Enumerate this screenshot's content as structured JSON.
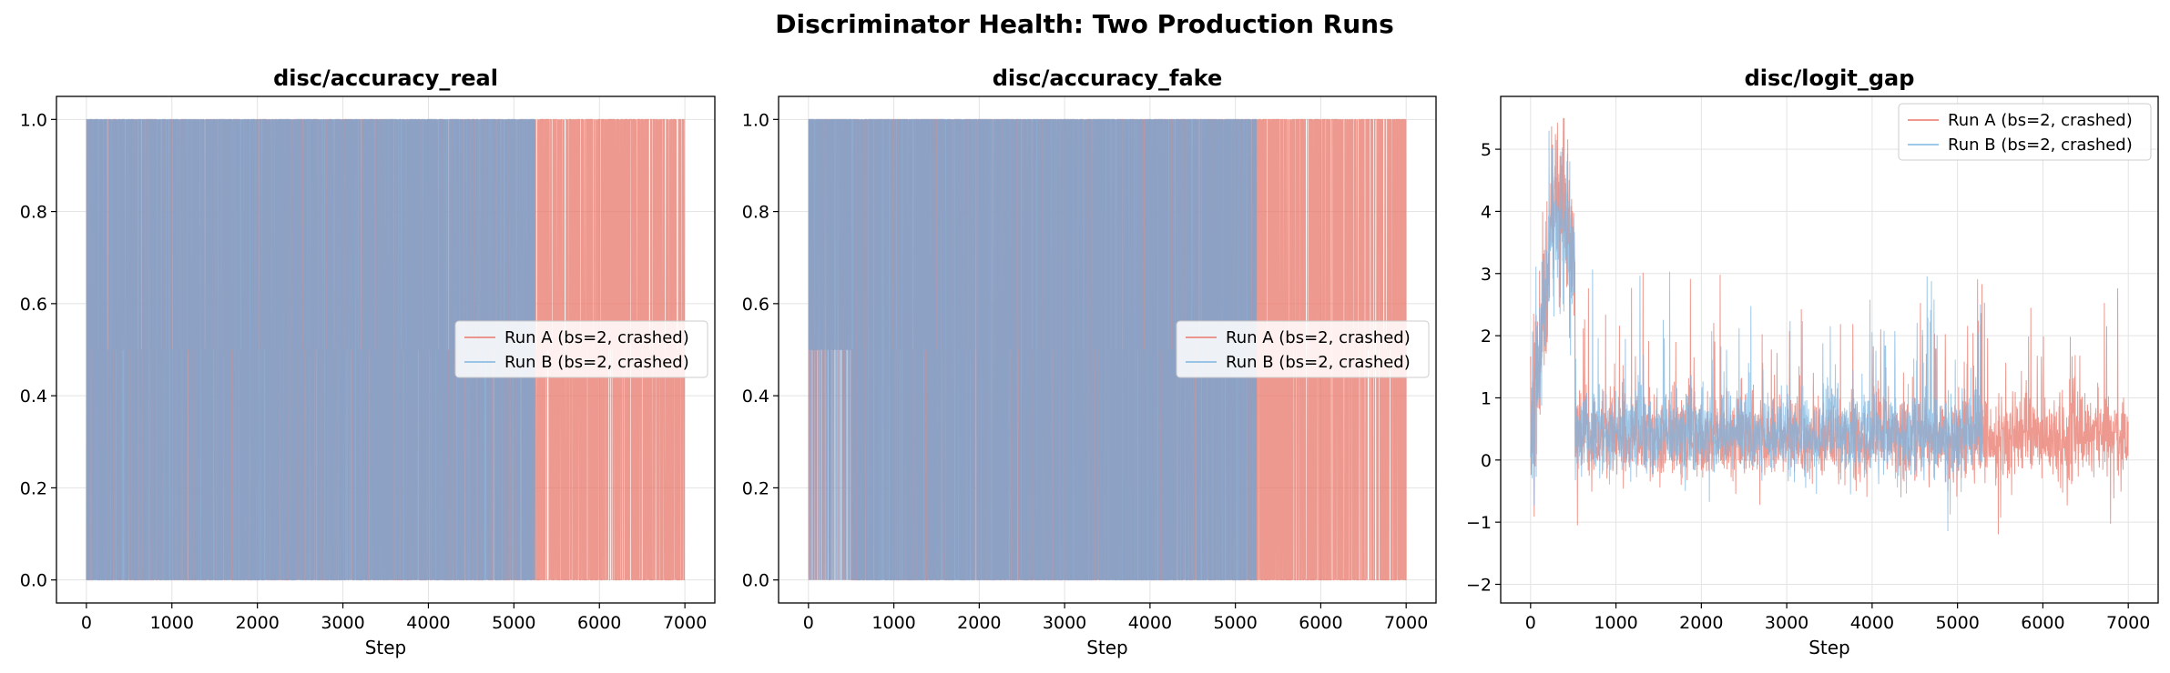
{
  "figure_title": "Discriminator Health: Two Production Runs",
  "colors": {
    "run_a": "#e8776a",
    "run_b": "#7eb6e0",
    "overlap": "#8497bd"
  },
  "chart_data": [
    {
      "type": "line",
      "title": "disc/accuracy_real",
      "xlabel": "Step",
      "ylabel": "",
      "xlim": [
        -350,
        7350
      ],
      "ylim": [
        -0.05,
        1.05
      ],
      "xticks": [
        0,
        1000,
        2000,
        3000,
        4000,
        5000,
        6000,
        7000
      ],
      "yticks": [
        0.0,
        0.2,
        0.4,
        0.6,
        0.8,
        1.0
      ],
      "ytick_labels": [
        "0.0",
        "0.2",
        "0.4",
        "0.6",
        "0.8",
        "1.0"
      ],
      "grid": true,
      "legend": "center-right",
      "series": [
        {
          "name": "Run A (bs=2, crashed)",
          "x_range": [
            0,
            7000
          ],
          "values_set": [
            0.0,
            0.5,
            1.0
          ],
          "summary": "oscillates between 0.0, 0.5 and 1.0 every step"
        },
        {
          "name": "Run B (bs=2, crashed)",
          "x_range": [
            0,
            5250
          ],
          "values_set": [
            0.0,
            0.5,
            1.0
          ],
          "summary": "oscillates between 0.0, 0.5 and 1.0 every step; run ends near step 5250"
        }
      ]
    },
    {
      "type": "line",
      "title": "disc/accuracy_fake",
      "xlabel": "Step",
      "ylabel": "",
      "xlim": [
        -350,
        7350
      ],
      "ylim": [
        -0.05,
        1.05
      ],
      "xticks": [
        0,
        1000,
        2000,
        3000,
        4000,
        5000,
        6000,
        7000
      ],
      "yticks": [
        0.0,
        0.2,
        0.4,
        0.6,
        0.8,
        1.0
      ],
      "ytick_labels": [
        "0.0",
        "0.2",
        "0.4",
        "0.6",
        "0.8",
        "1.0"
      ],
      "grid": true,
      "legend": "center-right",
      "series": [
        {
          "name": "Run A (bs=2, crashed)",
          "x_range": [
            0,
            7000
          ],
          "values_set": [
            0.0,
            0.5,
            1.0
          ],
          "summary": "oscillates between 0.0, 0.5 and 1.0; mostly 0.5-1.0 before step 500"
        },
        {
          "name": "Run B (bs=2, crashed)",
          "x_range": [
            0,
            5250
          ],
          "values_set": [
            0.0,
            0.5,
            1.0
          ],
          "summary": "oscillates between 0.0, 0.5 and 1.0; run ends near step 5250"
        }
      ]
    },
    {
      "type": "line",
      "title": "disc/logit_gap",
      "xlabel": "Step",
      "ylabel": "",
      "xlim": [
        -350,
        7350
      ],
      "ylim": [
        -2.3,
        5.85
      ],
      "xticks": [
        0,
        1000,
        2000,
        3000,
        4000,
        5000,
        6000,
        7000
      ],
      "yticks": [
        -2,
        -1,
        0,
        1,
        2,
        3,
        4,
        5
      ],
      "ytick_labels": [
        "−2",
        "−1",
        "0",
        "1",
        "2",
        "3",
        "4",
        "5"
      ],
      "grid": true,
      "legend": "upper-right",
      "series": [
        {
          "name": "Run A (bs=2, crashed)",
          "x_range": [
            0,
            7000
          ],
          "early_peak": 5.5,
          "early_peak_step": 300,
          "steady_mean": 0.35,
          "min": -1.95,
          "summary": "rises to ~5 in first 500 steps, drops to noisy band around 0.3 with spikes to ~3.4"
        },
        {
          "name": "Run B (bs=2, crashed)",
          "x_range": [
            0,
            5300
          ],
          "early_peak": 5.5,
          "early_peak_step": 300,
          "steady_mean": 0.4,
          "min": -1.6,
          "summary": "rises to ~5 in first 500 steps, drops to noisy band around 0.4 with spikes to ~3.3; ends near step 5300"
        }
      ]
    }
  ]
}
